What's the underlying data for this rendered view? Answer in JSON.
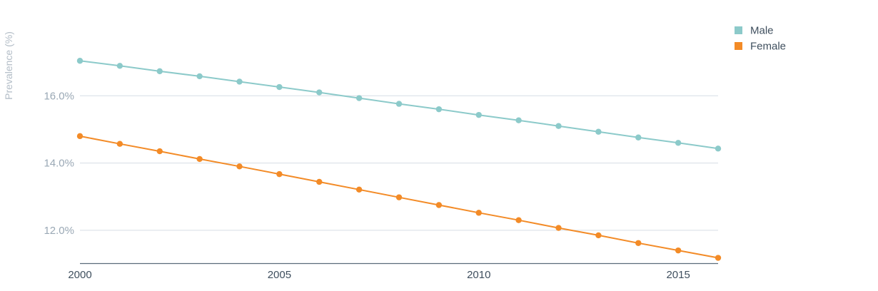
{
  "chart_data": {
    "type": "line",
    "title": "",
    "xlabel": "",
    "ylabel": "Prevalence (%)",
    "x": [
      2000,
      2001,
      2002,
      2003,
      2004,
      2005,
      2006,
      2007,
      2008,
      2009,
      2010,
      2011,
      2012,
      2013,
      2014,
      2015,
      2016
    ],
    "xlim": [
      2000,
      2016
    ],
    "ylim": [
      11.0,
      18.0
    ],
    "x_ticks": [
      2000,
      2005,
      2010,
      2015
    ],
    "x_tick_labels": [
      "2000",
      "2005",
      "2010",
      "2015"
    ],
    "y_ticks": [
      12.0,
      14.0,
      16.0
    ],
    "y_tick_labels": [
      "12.0%",
      "14.0%",
      "16.0%"
    ],
    "grid": true,
    "legend_position": "top-right",
    "series": [
      {
        "name": "Male",
        "color": "#8ccaca",
        "values": [
          17.04,
          16.89,
          16.73,
          16.58,
          16.42,
          16.26,
          16.1,
          15.93,
          15.76,
          15.6,
          15.43,
          15.27,
          15.1,
          14.93,
          14.76,
          14.6,
          14.43
        ]
      },
      {
        "name": "Female",
        "color": "#f38b27",
        "values": [
          14.8,
          14.57,
          14.35,
          14.12,
          13.9,
          13.67,
          13.44,
          13.21,
          12.98,
          12.75,
          12.52,
          12.3,
          12.07,
          11.85,
          11.62,
          11.4,
          11.18
        ]
      }
    ]
  }
}
